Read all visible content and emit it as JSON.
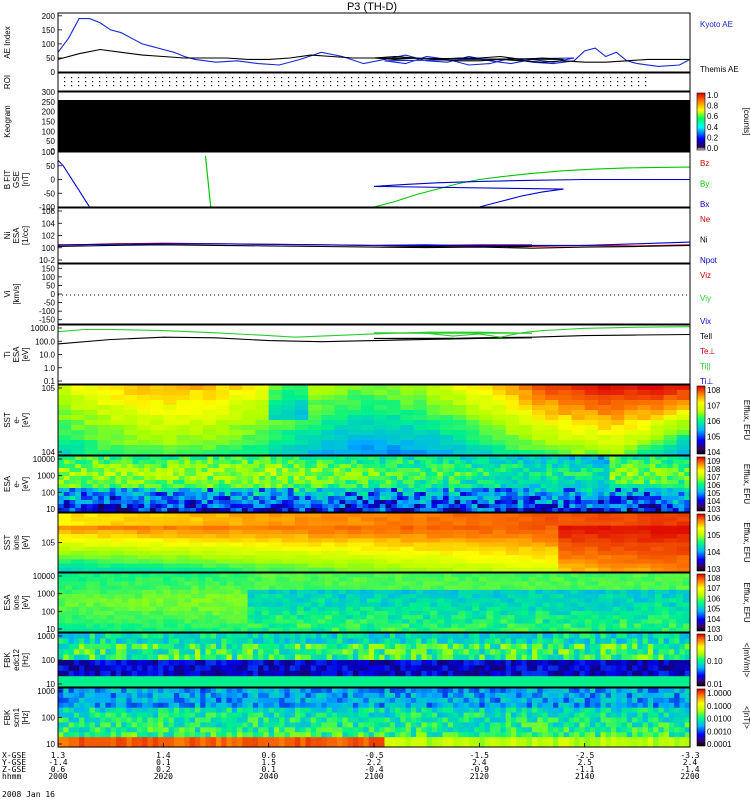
{
  "chart_data": {
    "title": "P3 (TH-D)",
    "type": "line",
    "date": "2008 Jan 16",
    "panels": [
      {
        "id": "ae",
        "ylabel": "AE Index",
        "yticks": [
          "0",
          "50",
          "100",
          "150",
          "200"
        ],
        "ylim": [
          0,
          210
        ],
        "series": [
          {
            "name": "Kyoto AE",
            "color": "#1428d2",
            "x": [
              2000,
              2002,
              2004,
              2006,
              2008,
              2010,
              2012,
              2014,
              2016,
              2018,
              2020,
              2022,
              2024,
              2026,
              2030,
              2034,
              2038,
              2042,
              2046,
              2050,
              2054,
              2058,
              2062,
              2066,
              2070,
              2074,
              2078,
              2082,
              2086,
              2090,
              2094,
              2098,
              2102,
              2106,
              2110,
              2114,
              2118,
              2122,
              2126,
              2130,
              2134,
              2138,
              2140,
              2142,
              2144,
              2146,
              2148,
              2150,
              2154,
              2158,
              2200
            ],
            "y": [
              70,
              120,
              190,
              190,
              175,
              150,
              140,
              120,
              100,
              90,
              80,
              70,
              55,
              45,
              35,
              40,
              30,
              25,
              45,
              70,
              55,
              30,
              45,
              60,
              40,
              35,
              55,
              40,
              30,
              45,
              35,
              50,
              40,
              30,
              55,
              45,
              25,
              30,
              50,
              35,
              30,
              40,
              75,
              85,
              55,
              70,
              40,
              30,
              20,
              25,
              45
            ]
          },
          {
            "name": "Themis AE",
            "color": "#000000",
            "x": [
              2000,
              2004,
              2008,
              2012,
              2016,
              2020,
              2024,
              2028,
              2032,
              2036,
              2040,
              2044,
              2048,
              2052,
              2056,
              2060,
              2064,
              2068,
              2072,
              2076,
              2080,
              2084,
              2088,
              2092,
              2096,
              2100,
              2104,
              2108,
              2112,
              2116,
              2120,
              2124,
              2128,
              2132,
              2136,
              2140,
              2144,
              2148,
              2152,
              2156,
              2200
            ],
            "y": [
              45,
              65,
              80,
              70,
              60,
              55,
              50,
              50,
              50,
              45,
              45,
              50,
              60,
              55,
              50,
              50,
              55,
              50,
              45,
              50,
              50,
              55,
              45,
              50,
              45,
              50,
              45,
              50,
              45,
              40,
              40,
              45,
              40,
              35,
              40,
              35,
              35,
              40,
              45,
              45,
              45
            ]
          }
        ],
        "legend": [
          "Kyoto AE",
          "Themis AE"
        ]
      },
      {
        "id": "roi",
        "ylabel": "ROI",
        "legend": []
      },
      {
        "id": "keogram",
        "ylabel": "Keogram",
        "yticks": [
          "0",
          "50",
          "100",
          "150",
          "200",
          "250",
          "300"
        ],
        "ylim": [
          0,
          300
        ],
        "colorbar": {
          "ticks": [
            "0.0",
            "0.2",
            "0.4",
            "0.6",
            "0.8",
            "1.0"
          ],
          "label": "[counts]"
        },
        "legend": []
      },
      {
        "id": "bfit",
        "ylabel": "B FIT\nGSE\n[nT]",
        "yticks": [
          "-100",
          "-50",
          "0",
          "50",
          "100"
        ],
        "ylim": [
          -100,
          100
        ],
        "series": [
          {
            "name": "Bz",
            "color": "#cc0000",
            "x": [],
            "y": []
          },
          {
            "name": "By",
            "color": "#00c800",
            "x": [
              2100,
              2104,
              2108,
              2112,
              2116,
              2120,
              2124,
              2130,
              2136,
              2142,
              2148,
              2154,
              2200
            ],
            "y": [
              -100,
              -80,
              -55,
              -35,
              -15,
              0,
              10,
              22,
              32,
              38,
              42,
              44,
              45
            ]
          },
          {
            "name": "Bx",
            "color": "#0000cc",
            "x": [
              2000,
              2001,
              2002,
              2003,
              2004,
              2005,
              2006,
              2080,
              2084,
              2088,
              2092,
              2096,
              2100,
              2106,
              2112,
              2120,
              2130,
              2140,
              2150,
              2200
            ],
            "y": [
              70,
              50,
              20,
              -10,
              -40,
              -70,
              -100,
              -100,
              -80,
              -60,
              -45,
              -35,
              -25,
              -18,
              -12,
              -7,
              -3,
              0,
              0,
              0
            ]
          }
        ],
        "legend": [
          "Bz",
          "By",
          "Bx"
        ]
      },
      {
        "id": "ni",
        "ylabel": "Ni\nESA\n[1/cc]",
        "yticks": [
          "10^6",
          "10^4",
          "10^2",
          "10^0",
          "10^-2"
        ],
        "ylim": [
          -3,
          7
        ],
        "series": [
          {
            "name": "Ne",
            "color": "#cc0000",
            "x": [
              2000,
              2010,
              2020,
              2030,
              2040,
              2050,
              2060,
              2070,
              2080,
              2090,
              2100,
              2110,
              2120,
              2130,
              2140,
              2150,
              2200
            ],
            "y": [
              0.2,
              0.5,
              0.6,
              0.5,
              0.4,
              0.3,
              0.2,
              0.2,
              0.3,
              0.3,
              0.2,
              0.1,
              0.2,
              0.0,
              0.2,
              0.1,
              0.3
            ]
          },
          {
            "name": "Ni",
            "color": "#000000",
            "x": [
              2000,
              2010,
              2020,
              2030,
              2040,
              2050,
              2060,
              2070,
              2080,
              2090,
              2100,
              2110,
              2120,
              2130,
              2140,
              2150,
              2200
            ],
            "y": [
              0.0,
              0.2,
              0.3,
              0.2,
              0.1,
              0.0,
              -0.1,
              0.0,
              -0.1,
              0.0,
              -0.1,
              -0.2,
              -0.1,
              -0.3,
              -0.1,
              0.0,
              0.2
            ]
          },
          {
            "name": "Npot",
            "color": "#0000cc",
            "x": [
              2000,
              2010,
              2020,
              2030,
              2040,
              2050,
              2060,
              2070,
              2080,
              2090,
              2100,
              2110,
              2120,
              2130,
              2140,
              2150,
              2200
            ],
            "y": [
              0.3,
              0.4,
              0.5,
              0.5,
              0.4,
              0.3,
              0.2,
              0.2,
              0.2,
              0.2,
              0.2,
              0.3,
              0.1,
              0.2,
              0.2,
              0.5,
              0.8
            ]
          }
        ],
        "legend": [
          "Ne",
          "Ni",
          "Npot"
        ]
      },
      {
        "id": "vi",
        "ylabel": "Vi\n[km/s]",
        "yticks": [
          "-150",
          "-100",
          "-50",
          "0",
          "50",
          "100",
          "150"
        ],
        "ylim": [
          -175,
          175
        ],
        "series": [],
        "legend": [
          "Viz",
          "Viy",
          "Vix"
        ]
      },
      {
        "id": "ti",
        "ylabel": "Ti\nESA\n[eV]",
        "yticks": [
          "1000.0",
          "100.0",
          "10.0",
          "1.0",
          "0.1"
        ],
        "ylim": [
          -1.3,
          4
        ],
        "series": [
          {
            "name": "Tell",
            "color": "#000000",
            "x": [
              2000,
              2010,
              2020,
              2030,
              2040,
              2050,
              2060,
              2070,
              2080,
              2090,
              2100,
              2110,
              2120,
              2130,
              2140,
              2150,
              2200
            ],
            "y": [
              2.3,
              2.7,
              2.9,
              2.85,
              2.6,
              2.5,
              2.6,
              2.7,
              2.8,
              2.85,
              2.8,
              2.75,
              2.85,
              2.9,
              3.05,
              3.1,
              3.15
            ]
          },
          {
            "name": "Ti",
            "color": "#2ccc2c",
            "x": [
              2000,
              2005,
              2010,
              2020,
              2030,
              2040,
              2045,
              2050,
              2060,
              2070,
              2080,
              2090,
              2100,
              2110,
              2115,
              2120,
              2124,
              2128,
              2132,
              2136,
              2140,
              2145,
              2150,
              2200
            ],
            "y": [
              3.4,
              3.6,
              3.6,
              3.5,
              3.3,
              3.05,
              2.9,
              3.0,
              3.2,
              3.35,
              3.35,
              3.25,
              3.3,
              3.25,
              3.0,
              3.2,
              2.9,
              3.3,
              3.5,
              3.6,
              3.7,
              3.75,
              3.8,
              3.85
            ]
          }
        ],
        "legend": [
          "Tell",
          "Te⊥",
          "Ti||",
          "Ti⊥"
        ]
      },
      {
        "id": "sst_e",
        "ylabel": "SST\ne-\n[eV]",
        "yticks": [
          "10^5",
          "10^4"
        ],
        "colorbar": {
          "ticks": [
            "10^8",
            "10^7",
            "10^6",
            "10^5",
            "10^4"
          ],
          "label": "Efflux, EFU"
        }
      },
      {
        "id": "esa_e",
        "ylabel": "ESA\ne-\n[eV]",
        "yticks": [
          "10000",
          "1000",
          "100",
          "10"
        ],
        "colorbar": {
          "ticks": [
            "10^9",
            "10^8",
            "10^7",
            "10^6",
            "10^5",
            "10^4",
            "10^3"
          ],
          "label": "Efflux, EFU"
        }
      },
      {
        "id": "sst_i",
        "ylabel": "SST\nions\n[eV]",
        "yticks": [
          "10^5"
        ],
        "colorbar": {
          "ticks": [
            "10^6",
            "10^5",
            "10^4",
            "10^3"
          ],
          "label": "Efflux, EFU"
        }
      },
      {
        "id": "esa_i",
        "ylabel": "ESA\nions\n[eV]",
        "yticks": [
          "10000",
          "1000",
          "100",
          "10"
        ],
        "colorbar": {
          "ticks": [
            "10^8",
            "10^7",
            "10^6",
            "10^5",
            "10^4",
            "10^3"
          ],
          "label": "Efflux, EFU"
        }
      },
      {
        "id": "fbk_e",
        "ylabel": "FBK\nedc12\n[Hz]",
        "yticks": [
          "1000",
          "100",
          "10"
        ],
        "colorbar": {
          "ticks": [
            "1.00",
            "0.10",
            "0.01"
          ],
          "label": "<|mV/m|>"
        }
      },
      {
        "id": "fbk_b",
        "ylabel": "FBK\nscm1\n[Hz]",
        "yticks": [
          "1000",
          "100",
          "10"
        ],
        "colorbar": {
          "ticks": [
            "1.0000",
            "0.1000",
            "0.0100",
            "0.0010",
            "0.0001"
          ],
          "label": "<|nT|>"
        }
      }
    ],
    "xaxis": {
      "row_labels": [
        "X-GSE",
        "Y-GSE",
        "Z-GSE",
        "hhmm"
      ],
      "columns": [
        {
          "x": "1.3",
          "y": "-1.4",
          "z": "0.6",
          "t": "2000"
        },
        {
          "x": "1.4",
          "y": "0.1",
          "z": "0.2",
          "t": "2020"
        },
        {
          "x": "0.6",
          "y": "1.5",
          "z": "0.1",
          "t": "2040"
        },
        {
          "x": "-0.5",
          "y": "2.2",
          "z": "-0.4",
          "t": "2100"
        },
        {
          "x": "-1.5",
          "y": "2.4",
          "z": "-0.9",
          "t": "2120"
        },
        {
          "x": "-2.5",
          "y": "2.5",
          "z": "-1.1",
          "t": "2140"
        },
        {
          "x": "-3.3",
          "y": "2.4",
          "z": "-1.4",
          "t": "2200"
        }
      ]
    }
  }
}
